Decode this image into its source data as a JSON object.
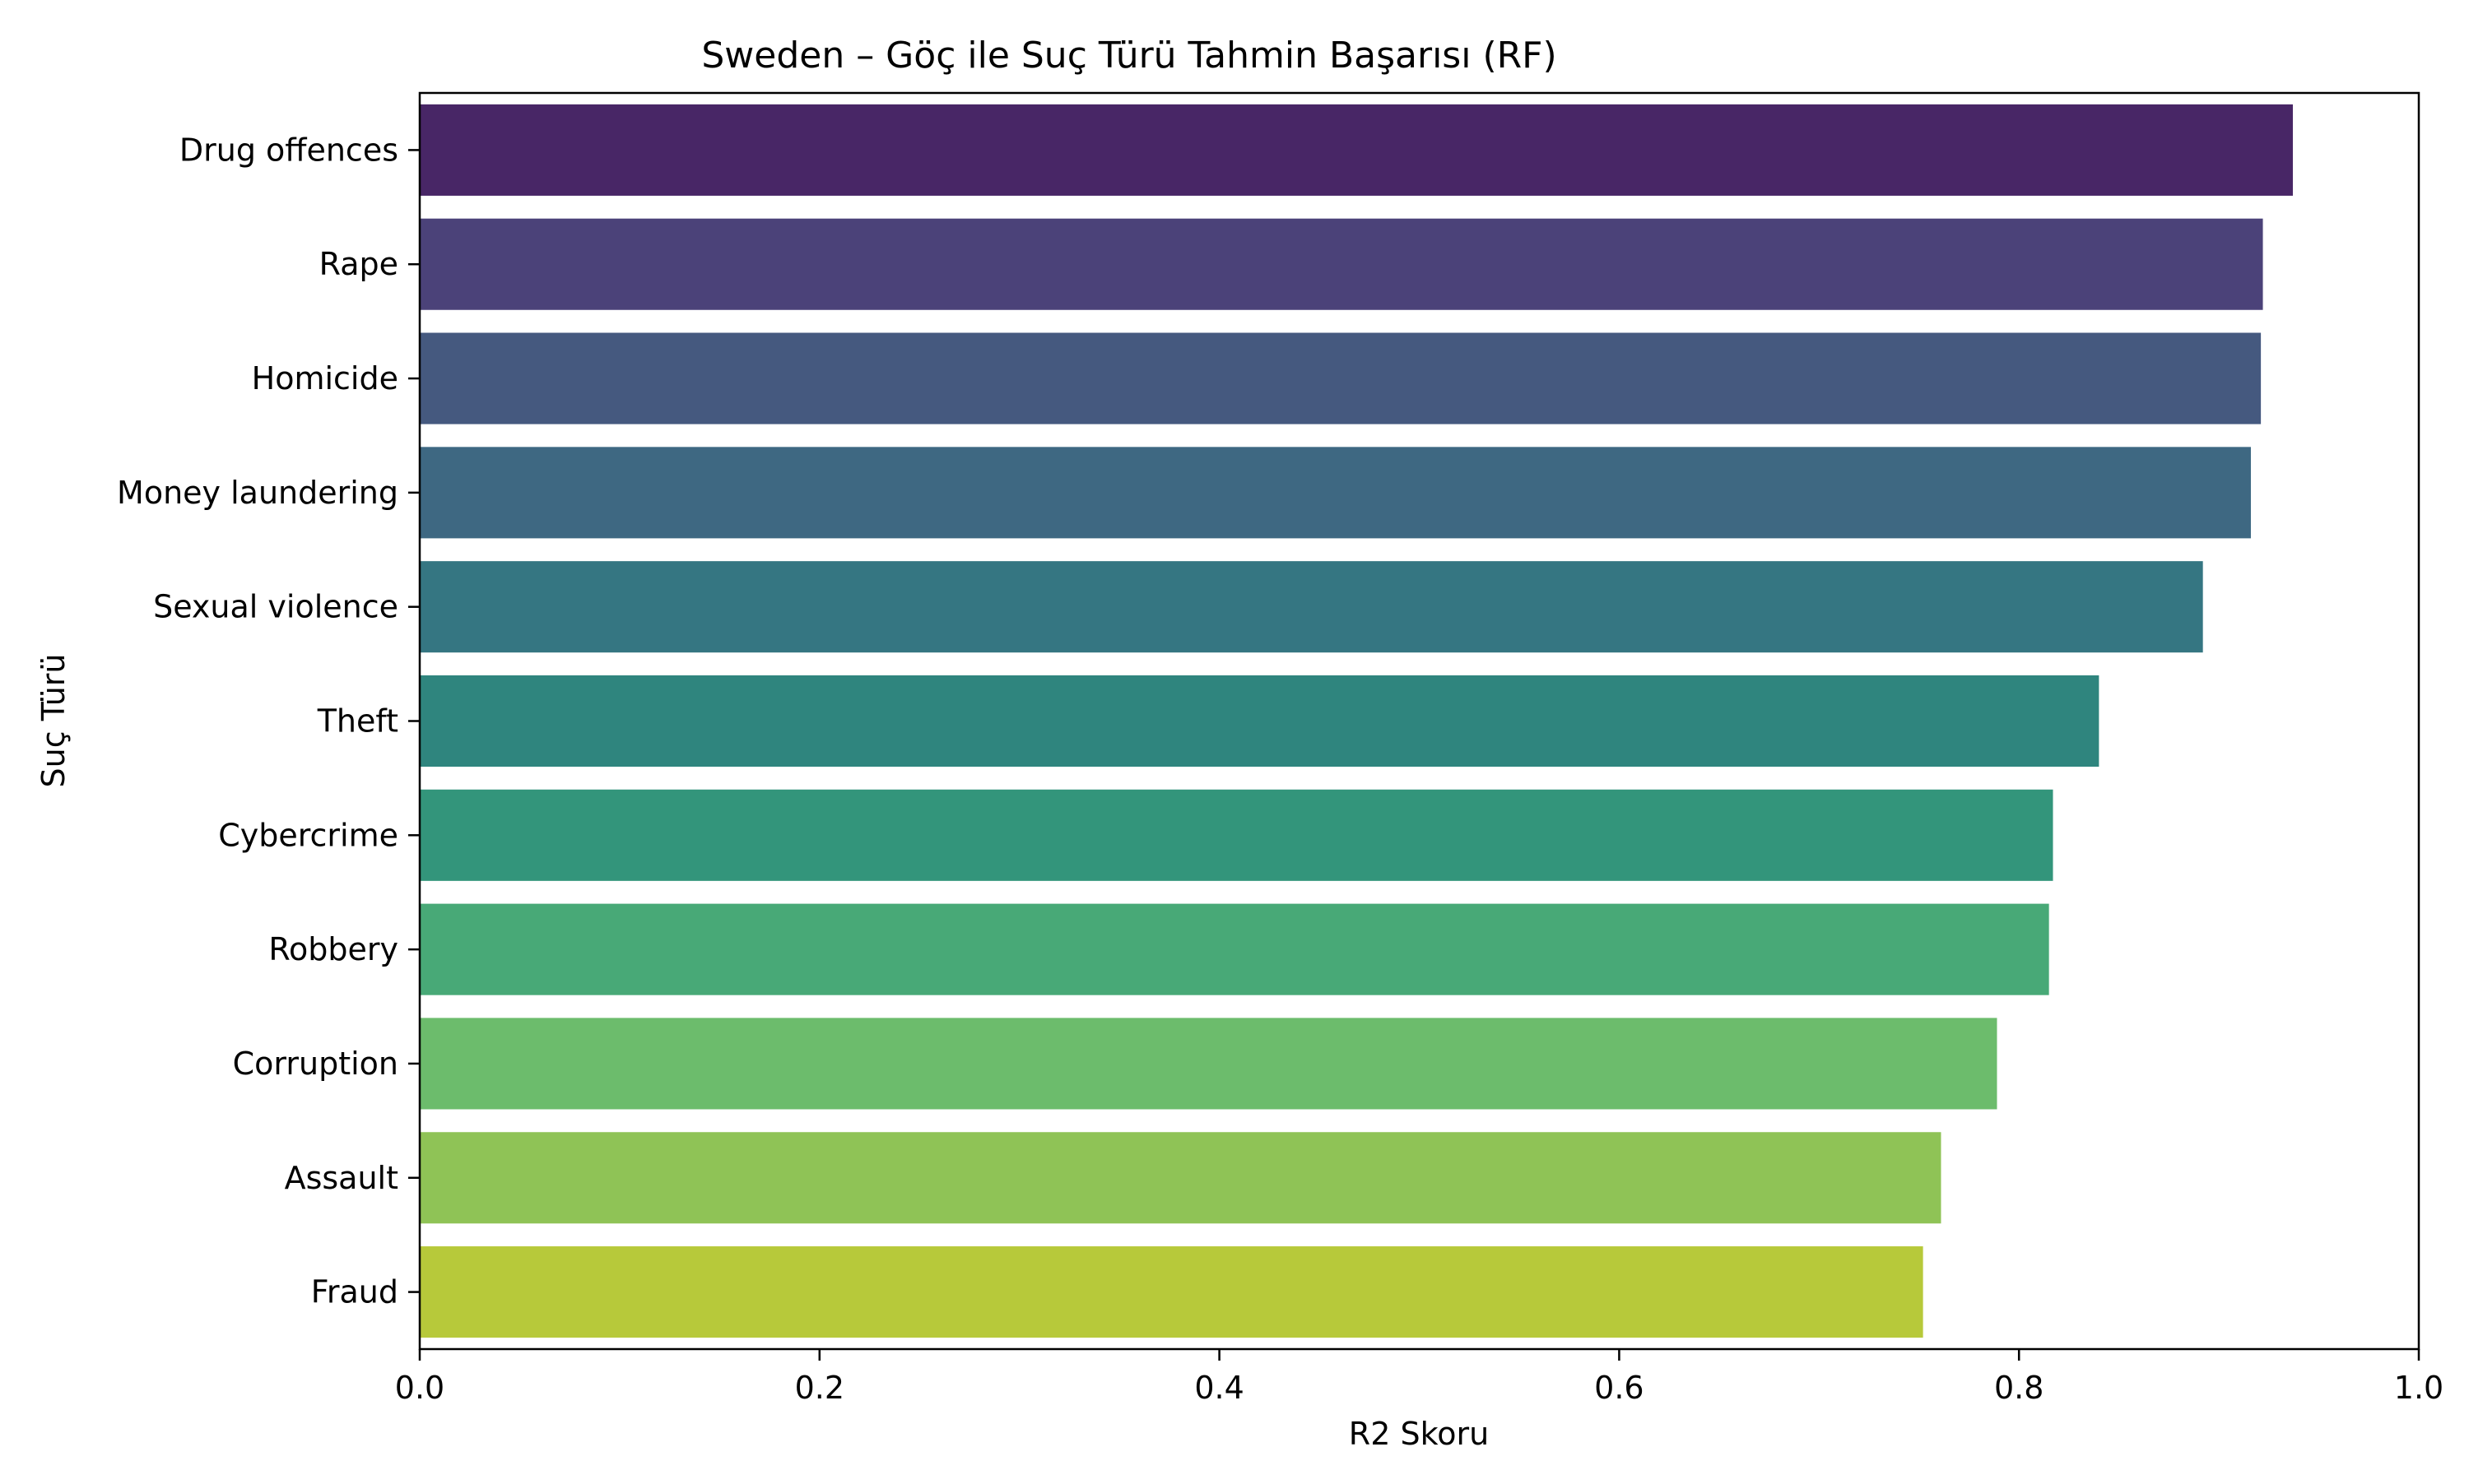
{
  "chart_data": {
    "type": "bar",
    "orientation": "horizontal",
    "title": "Sweden – Göç ile Suç Türü Tahmin Başarısı (RF)",
    "xlabel": "R2 Skoru",
    "ylabel": "Suç Türü",
    "xlim": [
      0.0,
      1.0
    ],
    "xticks": [
      "0.0",
      "0.2",
      "0.4",
      "0.6",
      "0.8",
      "1.0"
    ],
    "xtick_values": [
      0.0,
      0.2,
      0.4,
      0.6,
      0.8,
      1.0
    ],
    "grid": false,
    "categories": [
      "Drug offences",
      "Rape",
      "Homicide",
      "Money laundering",
      "Sexual violence",
      "Theft",
      "Cybercrime",
      "Robbery",
      "Corruption",
      "Assault",
      "Fraud"
    ],
    "values": [
      0.937,
      0.922,
      0.921,
      0.916,
      0.892,
      0.84,
      0.817,
      0.815,
      0.789,
      0.761,
      0.752
    ],
    "colors": [
      "#482666",
      "#4b4279",
      "#45597f",
      "#3e6882",
      "#357682",
      "#2f857e",
      "#33957b",
      "#48a977",
      "#6cbc6c",
      "#8fc356",
      "#b7c93a"
    ]
  }
}
